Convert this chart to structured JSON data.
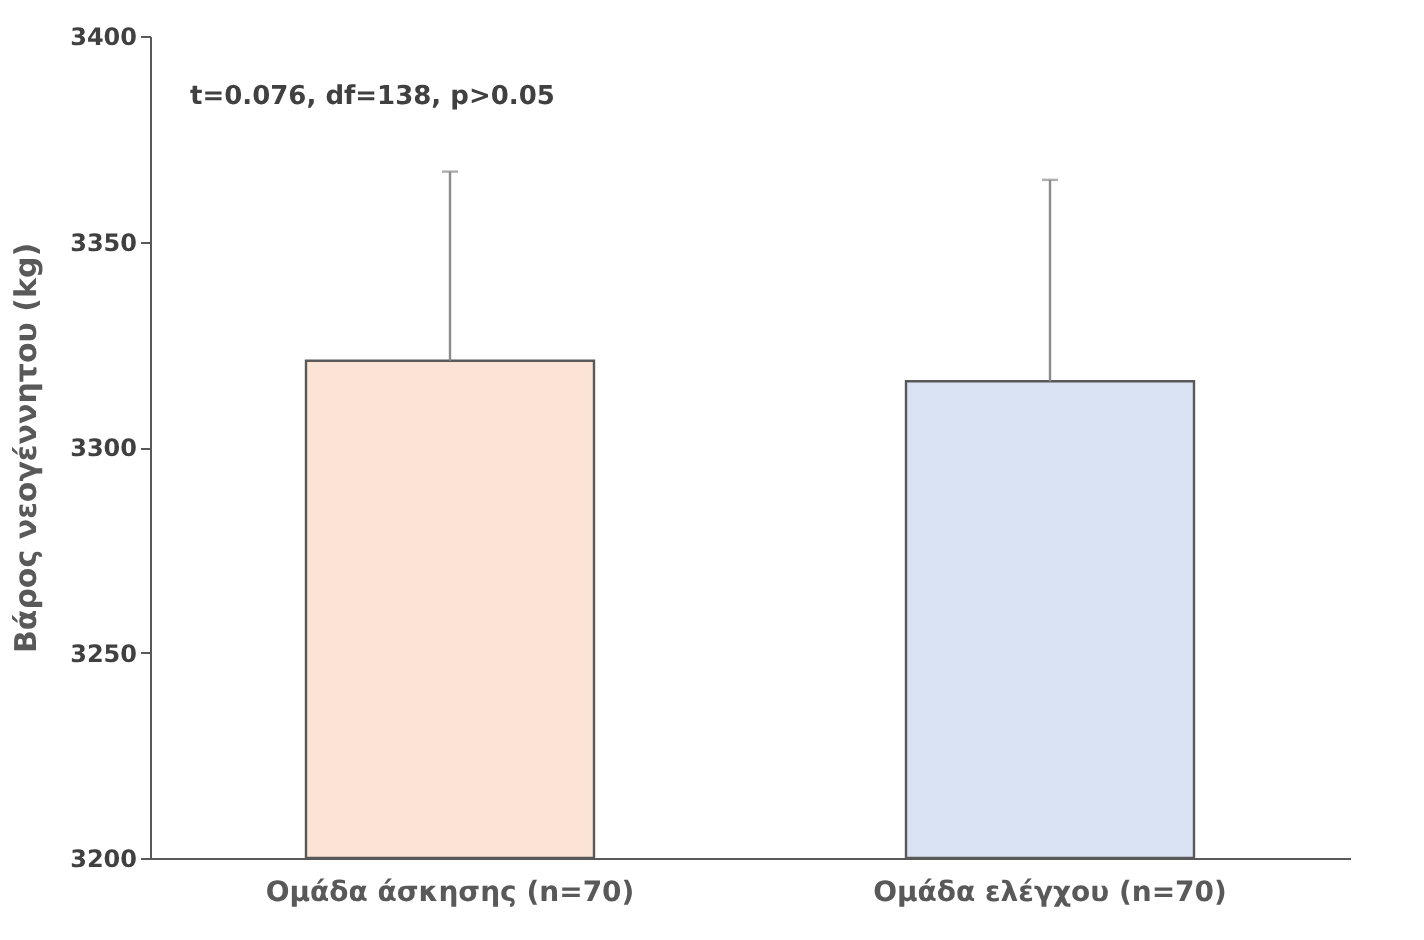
{
  "chart_data": {
    "type": "bar",
    "ylabel": "Βάρος νεογέννητου  (kg)",
    "categories": [
      "Ομάδα άσκησης (n=70)",
      "Ομάδα ελέγχου (n=70)"
    ],
    "values": [
      3321,
      3316
    ],
    "colors": [
      "#fbe3d6",
      "#dae3f3"
    ],
    "errors": [
      [
        3321,
        3367
      ],
      [
        3316,
        3365
      ]
    ],
    "ylim": [
      3200,
      3400
    ],
    "yticks": [
      3200,
      3250,
      3300,
      3350,
      3400
    ],
    "grid": false,
    "annotations": [
      "t=0.076, df=138, p>0.05"
    ]
  }
}
